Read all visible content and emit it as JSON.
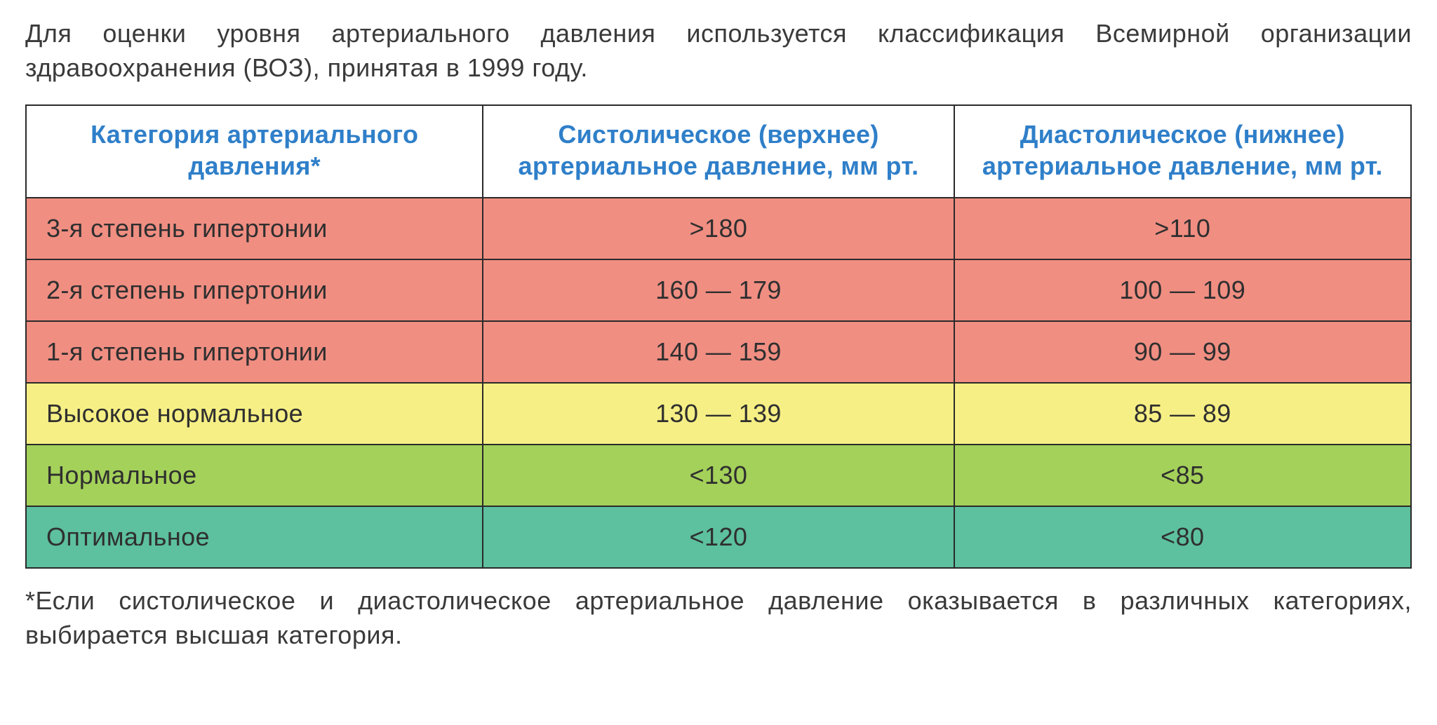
{
  "intro_text": "Для оценки уровня артериального давления используется классификация Всемирной организации здравоохранения (ВОЗ), принятая в 1999 году.",
  "footnote_text": "*Если систолическое и диастолическое артериальное давление оказывается в различных категориях, выбирается высшая категория.",
  "table": {
    "type": "table",
    "header_text_color": "#2f7fc9",
    "header_bg_color": "#ffffff",
    "border_color": "#2a2a2a",
    "header_fontsize_pt": 27,
    "body_fontsize_pt": 27,
    "column_widths_pct": [
      33,
      34,
      33
    ],
    "columns": [
      "Категория артериального давления*",
      "Систолическое (верхнее) артериальное давление, мм рт.",
      "Диастолическое (нижнее) артериальное давление, мм рт."
    ],
    "rows": [
      {
        "category": "3-я степень гипертонии",
        "systolic": ">180",
        "diastolic": ">110",
        "bg_color": "#f08e82"
      },
      {
        "category": "2-я степень гипертонии",
        "systolic": "160 — 179",
        "diastolic": "100 — 109",
        "bg_color": "#f08e82"
      },
      {
        "category": "1-я степень гипертонии",
        "systolic": "140 — 159",
        "diastolic": "90 — 99",
        "bg_color": "#f08e82"
      },
      {
        "category": "Высокое нормальное",
        "systolic": "130 — 139",
        "diastolic": "85 — 89",
        "bg_color": "#f6ef85"
      },
      {
        "category": "Нормальное",
        "systolic": "<130",
        "diastolic": "<85",
        "bg_color": "#a4d15a"
      },
      {
        "category": "Оптимальное",
        "systolic": "<120",
        "diastolic": "<80",
        "bg_color": "#5dc09e"
      }
    ]
  },
  "colors": {
    "page_bg": "#ffffff",
    "body_text": "#3a3a3a"
  },
  "typography": {
    "font_family": "Helvetica Neue, Helvetica, Arial, sans-serif",
    "intro_fontsize_pt": 27,
    "footnote_fontsize_pt": 27,
    "header_weight": 700,
    "body_weight": 300
  }
}
